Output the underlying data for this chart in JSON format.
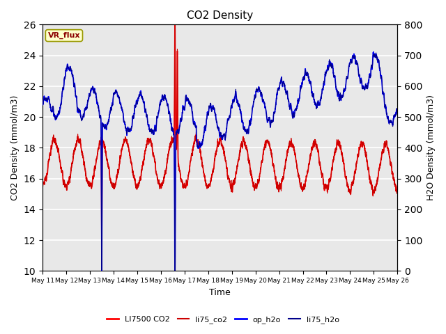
{
  "title": "CO2 Density",
  "xlabel": "Time",
  "ylabel_left": "CO2 Density (mmol/m3)",
  "ylabel_right": "H2O Density (mmol/m3)",
  "ylim_left": [
    10,
    26
  ],
  "ylim_right": [
    0,
    800
  ],
  "yticks_left": [
    10,
    12,
    14,
    16,
    18,
    20,
    22,
    24,
    26
  ],
  "yticks_right": [
    0,
    100,
    200,
    300,
    400,
    500,
    600,
    700,
    800
  ],
  "bg_color": "#e8e8e8",
  "grid_color": "white",
  "legend_entries": [
    "LI7500 CO2",
    "li75_co2",
    "op_h2o",
    "li75_h2o"
  ],
  "co2_color": "red",
  "li75_co2_color": "#cc0000",
  "op_h2o_color": "blue",
  "li75_h2o_color": "#00008b",
  "vr_flux_label": "VR_flux",
  "vr_flux_bg": "#ffffcc",
  "vr_flux_border": "#999900",
  "vr_flux_text_color": "#8b0000",
  "n_days": 15,
  "day_start": 11
}
